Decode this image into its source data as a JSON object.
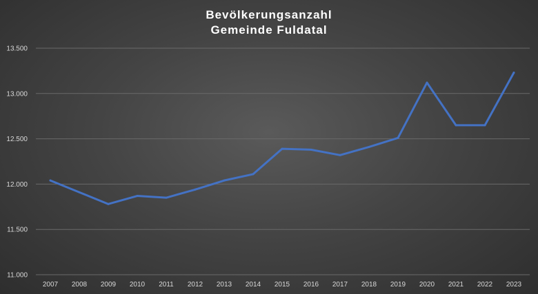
{
  "chart_data": {
    "type": "line",
    "title": "Bevölkerungsanzahl",
    "subtitle": "Gemeinde Fuldatal",
    "xlabel": "",
    "ylabel": "",
    "categories": [
      "2007",
      "2008",
      "2009",
      "2010",
      "2011",
      "2012",
      "2013",
      "2014",
      "2015",
      "2016",
      "2017",
      "2018",
      "2019",
      "2020",
      "2021",
      "2022",
      "2023"
    ],
    "series": [
      {
        "values": [
          12040,
          11910,
          11780,
          11870,
          11850,
          11940,
          12040,
          12110,
          12390,
          12380,
          12320,
          12410,
          12510,
          13120,
          12650,
          12650,
          13230
        ]
      }
    ],
    "ylim": [
      11000,
      13500
    ],
    "yticks": [
      11000,
      11500,
      12000,
      12500,
      13000,
      13500
    ],
    "ytick_labels": [
      "11.000",
      "11.500",
      "12.000",
      "12.500",
      "13.000",
      "13.500"
    ],
    "grid": true,
    "legend": "none",
    "line_color": "#4472C4"
  }
}
